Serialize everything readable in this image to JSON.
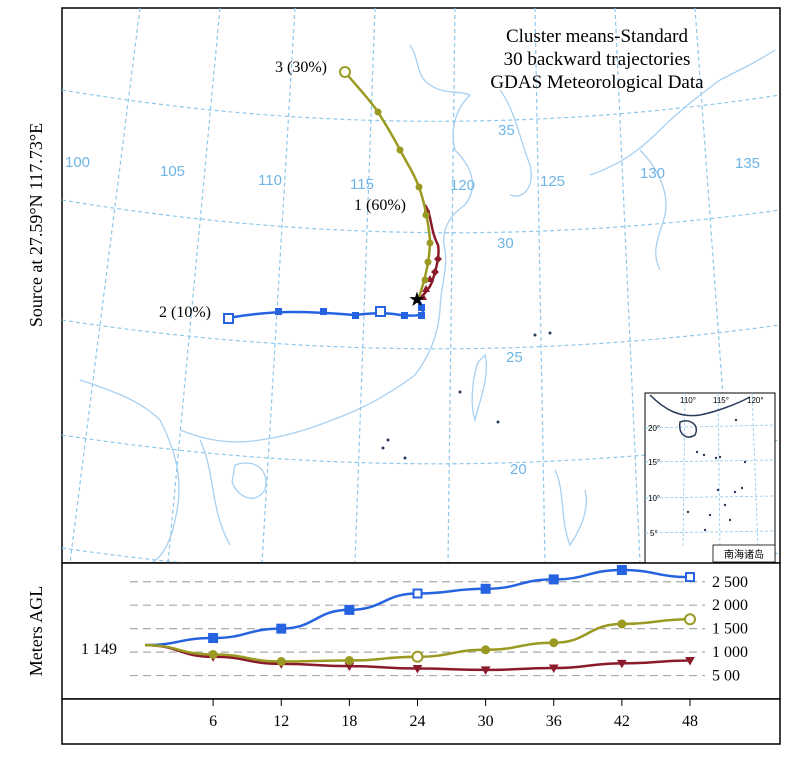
{
  "title_lines": [
    "Cluster means-Standard",
    "30 backward trajectories",
    "GDAS Meteorological Data"
  ],
  "source_label": "Source at 27.59°N 117.73°E",
  "y_axis_label": "Meters AGL",
  "start_height_label": "1 149",
  "longitude_labels": [
    "100",
    "105",
    "110",
    "115",
    "120",
    "125",
    "130",
    "135"
  ],
  "latitude_labels": [
    "35",
    "30",
    "25",
    "20"
  ],
  "cluster_labels": {
    "c1": "1 (60%)",
    "c2": "2 (10%)",
    "c3": "3 (30%)"
  },
  "inset": {
    "lon_labels": [
      "110°",
      "115°",
      "120°"
    ],
    "lat_labels": [
      "20°",
      "15°",
      "10°",
      "5°"
    ],
    "caption": "南海诸岛"
  },
  "height_ticks": [
    "2 500",
    "2 000",
    "1 500",
    "1 000",
    "5 00"
  ],
  "hour_ticks": [
    "6",
    "12",
    "18",
    "24",
    "30",
    "36",
    "42",
    "48"
  ],
  "colors": {
    "cluster1": "#8b1a2b",
    "cluster2": "#2563e0",
    "cluster3": "#9a9a22",
    "grid": "#8ec8ec",
    "coast": "#a8d0f0"
  },
  "chart_data": {
    "type": "line",
    "xlabel": "",
    "ylabel": "Meters AGL",
    "x": [
      0,
      6,
      12,
      18,
      24,
      30,
      36,
      42,
      48
    ],
    "ylim": [
      0,
      2900
    ],
    "series": [
      {
        "name": "1 (60%)",
        "values": [
          1149,
          900,
          750,
          700,
          650,
          620,
          660,
          760,
          820
        ]
      },
      {
        "name": "2 (10%)",
        "values": [
          1149,
          1300,
          1500,
          1900,
          2250,
          2350,
          2550,
          2750,
          2600
        ]
      },
      {
        "name": "3 (30%)",
        "values": [
          1149,
          950,
          800,
          820,
          900,
          1050,
          1200,
          1600,
          1700
        ]
      }
    ]
  }
}
